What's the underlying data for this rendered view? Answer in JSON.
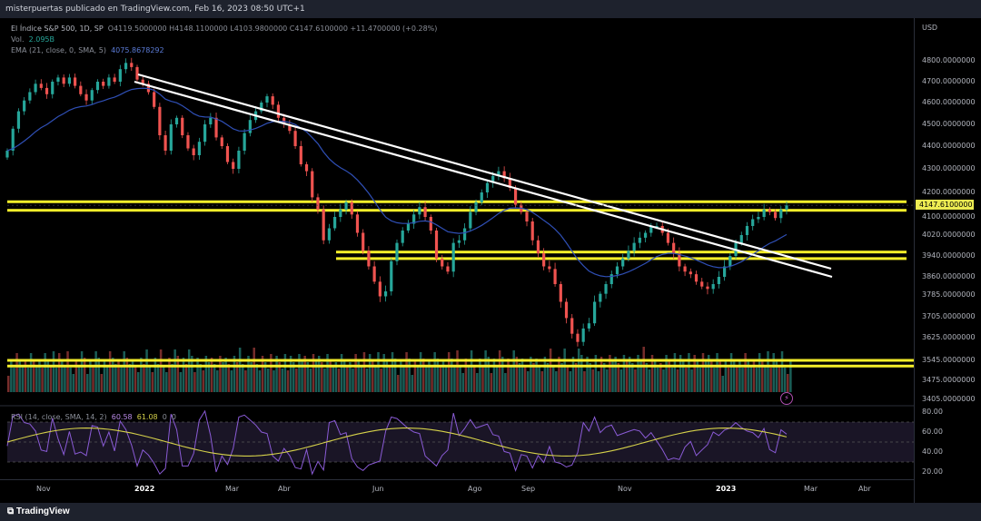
{
  "header": {
    "publisher": "misterpuertas publicado en TradingView.com, Feb 16, 2023 08:50 UTC+1"
  },
  "legend": {
    "symbol": "El Índice S&P 500, 1D, SP",
    "ohlc": "O4119.5000000  H4148.1100000  L4103.9800000  C4147.6100000  +11.4700000 (+0.28%)",
    "volume_label": "Vol.",
    "volume_value": "2.095B",
    "ema_label": "EMA (21, close, 0, SMA, 5)",
    "ema_value": "4075.8678292"
  },
  "price_axis": {
    "currency": "USD",
    "ticks": [
      "4800.0000000",
      "4700.0000000",
      "4600.0000000",
      "4500.0000000",
      "4400.0000000",
      "4300.0000000",
      "4200.0000000",
      "4100.0000000",
      "4020.0000000",
      "3940.0000000",
      "3860.0000000",
      "3785.0000000",
      "3705.0000000",
      "3625.0000000",
      "3545.0000000",
      "3475.0000000",
      "3405.0000000"
    ],
    "last_price": "4147.6100000"
  },
  "rsi": {
    "label": "RSI (14, close, SMA, 14, 2)",
    "rsi_value": "60.58",
    "ma_value": "61.08",
    "extra1": "0",
    "extra2": "0",
    "ticks": [
      "80.00",
      "60.00",
      "40.00",
      "20.00"
    ]
  },
  "time_axis": [
    "Nov",
    "2022",
    "Mar",
    "Abr",
    "Jun",
    "Ago",
    "Sep",
    "Nov",
    "2023",
    "Mar",
    "Abr"
  ],
  "footer": {
    "brand": "TradingView"
  },
  "colors": {
    "up": "#26a69a",
    "down": "#ef5350",
    "ema": "#2f4fb5",
    "level": "#f5ee2a",
    "trendline": "#ffffff",
    "rsi": "#8a5bd6",
    "rsi_ma": "#d6d24a"
  },
  "chart_data": {
    "type": "candlestick",
    "levels": [
      4162,
      4127,
      3955,
      3930
    ],
    "volume_levels": [
      3545,
      3525
    ],
    "closes": [
      4380,
      4480,
      4560,
      4610,
      4650,
      4690,
      4670,
      4640,
      4700,
      4720,
      4690,
      4720,
      4680,
      4640,
      4610,
      4660,
      4700,
      4680,
      4720,
      4700,
      4760,
      4790,
      4770,
      4710,
      4690,
      4650,
      4580,
      4450,
      4380,
      4500,
      4530,
      4450,
      4390,
      4360,
      4420,
      4500,
      4530,
      4440,
      4400,
      4330,
      4300,
      4380,
      4460,
      4520,
      4560,
      4600,
      4630,
      4590,
      4530,
      4500,
      4470,
      4400,
      4320,
      4290,
      4180,
      4130,
      4000,
      4050,
      4100,
      4130,
      4160,
      4110,
      4030,
      3960,
      3900,
      3840,
      3780,
      3800,
      3920,
      3990,
      4040,
      4070,
      4110,
      4140,
      4100,
      4040,
      3930,
      3900,
      3880,
      3990,
      4000,
      4050,
      4120,
      4160,
      4200,
      4240,
      4270,
      4290,
      4260,
      4220,
      4150,
      4120,
      4080,
      4000,
      3950,
      3900,
      3890,
      3830,
      3760,
      3700,
      3640,
      3610,
      3660,
      3680,
      3760,
      3790,
      3830,
      3870,
      3900,
      3930,
      3960,
      3990,
      4010,
      4030,
      4060,
      4060,
      4030,
      3990,
      3950,
      3900,
      3880,
      3870,
      3840,
      3820,
      3810,
      3830,
      3860,
      3900,
      3940,
      3990,
      4020,
      4060,
      4090,
      4100,
      4130,
      4120,
      4095,
      4130,
      4147
    ]
  }
}
